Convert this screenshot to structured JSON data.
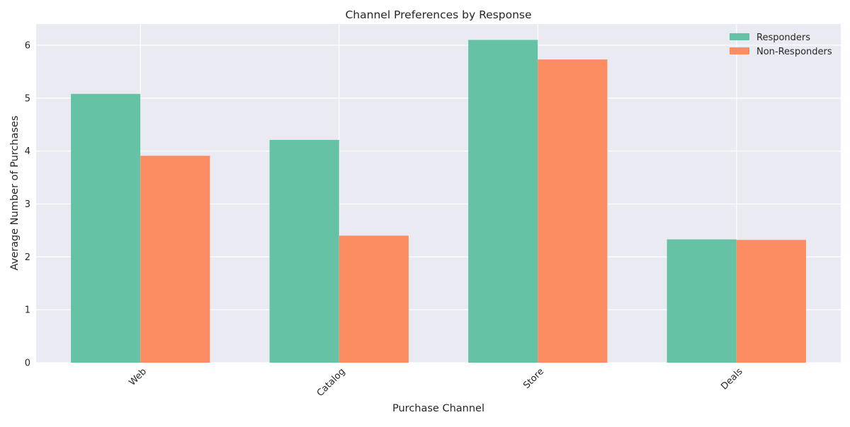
{
  "chart_data": {
    "type": "bar",
    "title": "Channel Preferences by Response",
    "xlabel": "Purchase Channel",
    "ylabel": "Average Number of Purchases",
    "categories": [
      "Web",
      "Catalog",
      "Store",
      "Deals"
    ],
    "series": [
      {
        "name": "Responders",
        "color": "#66c2a5",
        "values": [
          5.08,
          4.21,
          6.1,
          2.33
        ]
      },
      {
        "name": "Non-Responders",
        "color": "#fc8d62",
        "values": [
          3.91,
          2.4,
          5.73,
          2.32
        ]
      }
    ],
    "ylim": [
      0,
      6.4
    ],
    "yticks": [
      0,
      1,
      2,
      3,
      4,
      5,
      6
    ],
    "grid": true,
    "legend_position": "top-right",
    "background": "#eaeaf2",
    "grid_color": "#ffffff"
  }
}
